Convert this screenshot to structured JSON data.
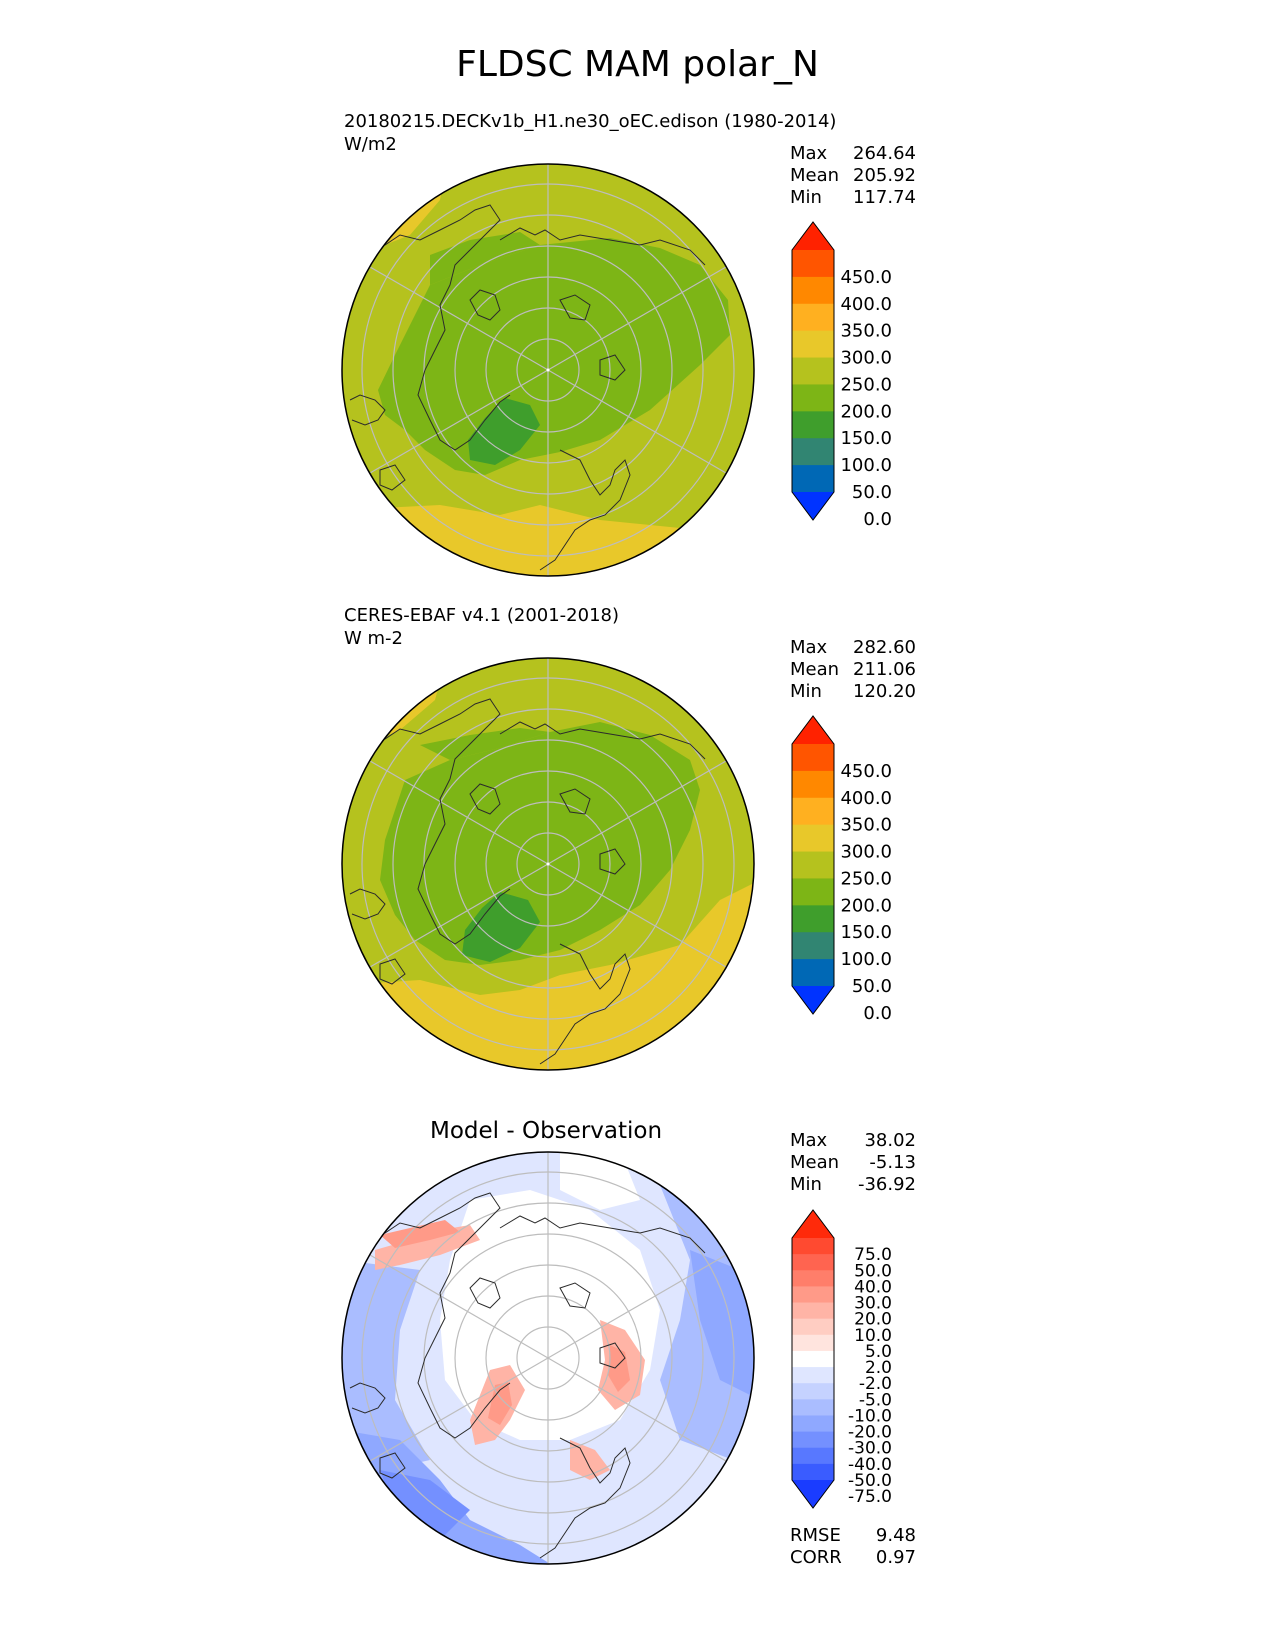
{
  "title": "FLDSC MAM polar_N",
  "colors": {
    "grid": "#bdbdbd",
    "coast": "#2b2b2b",
    "outline": "#000000"
  },
  "panels": [
    {
      "id": "test",
      "case_name": "20180215.DECKv1b_H1.ne30_oEC.edison (1980-2014)",
      "units": "W/m2",
      "title": "",
      "stats": [
        {
          "label": "Max",
          "value": "264.64"
        },
        {
          "label": "Mean",
          "value": "205.92"
        },
        {
          "label": "Min",
          "value": "117.74"
        }
      ],
      "colorbar": {
        "labels": [
          "450.0",
          "400.0",
          "350.0",
          "300.0",
          "250.0",
          "200.0",
          "150.0",
          "100.0",
          "50.0",
          "0.0"
        ],
        "colors": [
          "#ff2200",
          "#ff5500",
          "#ff8800",
          "#ffb020",
          "#e8c82a",
          "#b5c21e",
          "#7db516",
          "#3f9e2c",
          "#318572",
          "#0068b5",
          "#0033ff"
        ],
        "extend": "both"
      },
      "field": {
        "base": "#b5c21e",
        "regions": [
          {
            "level": "250.0",
            "color": "#e8c82a"
          },
          {
            "level": "150.0",
            "color": "#7db516"
          },
          {
            "level": "100.0",
            "color": "#3f9e2c"
          }
        ]
      }
    },
    {
      "id": "reference",
      "case_name": "CERES-EBAF v4.1 (2001-2018)",
      "units": "W m-2",
      "title": "",
      "stats": [
        {
          "label": "Max",
          "value": "282.60"
        },
        {
          "label": "Mean",
          "value": "211.06"
        },
        {
          "label": "Min",
          "value": "120.20"
        }
      ],
      "colorbar": {
        "labels": [
          "450.0",
          "400.0",
          "350.0",
          "300.0",
          "250.0",
          "200.0",
          "150.0",
          "100.0",
          "50.0",
          "0.0"
        ],
        "colors": [
          "#ff2200",
          "#ff5500",
          "#ff8800",
          "#ffb020",
          "#e8c82a",
          "#b5c21e",
          "#7db516",
          "#3f9e2c",
          "#318572",
          "#0068b5",
          "#0033ff"
        ],
        "extend": "both"
      },
      "field": {
        "base": "#b5c21e",
        "regions": [
          {
            "level": "250.0",
            "color": "#e8c82a"
          },
          {
            "level": "150.0",
            "color": "#7db516"
          },
          {
            "level": "100.0",
            "color": "#3f9e2c"
          }
        ]
      }
    },
    {
      "id": "diff",
      "case_name": "",
      "units": "",
      "title": "Model - Observation",
      "stats": [
        {
          "label": "Max",
          "value": "38.02"
        },
        {
          "label": "Mean",
          "value": "-5.13"
        },
        {
          "label": "Min",
          "value": "-36.92"
        }
      ],
      "extra_stats": [
        {
          "label": "RMSE",
          "value": "9.48"
        },
        {
          "label": "CORR",
          "value": "0.97"
        }
      ],
      "colorbar": {
        "labels": [
          "75.0",
          "50.0",
          "40.0",
          "30.0",
          "20.0",
          "10.0",
          "5.0",
          "2.0",
          "-2.0",
          "-5.0",
          "-10.0",
          "-20.0",
          "-30.0",
          "-40.0",
          "-50.0",
          "-75.0"
        ],
        "colors": [
          "#ff2a0a",
          "#ff4a30",
          "#ff6450",
          "#ff7e6a",
          "#ff9a88",
          "#ffb4a6",
          "#ffcdc2",
          "#ffe4de",
          "#ffffff",
          "#dfe6ff",
          "#c5d2ff",
          "#aabdff",
          "#8fa8ff",
          "#7490ff",
          "#5878ff",
          "#3a5cff",
          "#1a3cff"
        ],
        "extend": "both"
      },
      "field": {
        "base": "#dfe6ff",
        "regions": [
          {
            "level": "-10.0",
            "color": "#aabdff"
          },
          {
            "level": "-20.0",
            "color": "#8fa8ff"
          },
          {
            "level": "-30.0",
            "color": "#7490ff"
          },
          {
            "level": "2.0",
            "color": "#ffffff"
          },
          {
            "level": "10.0",
            "color": "#ffb4a6"
          },
          {
            "level": "20.0",
            "color": "#ff9a88"
          }
        ]
      }
    }
  ]
}
